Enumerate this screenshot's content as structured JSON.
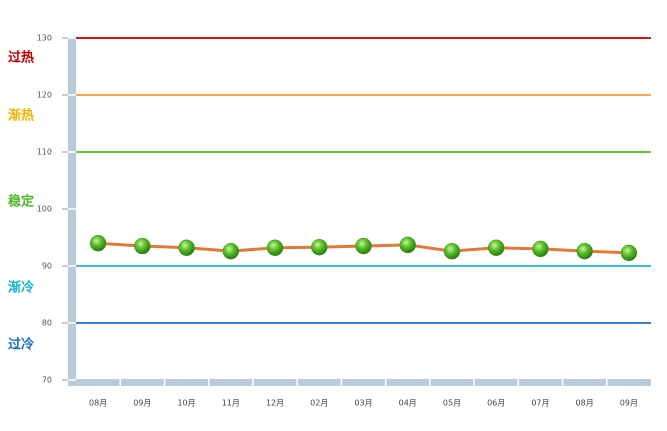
{
  "chart_data": {
    "type": "line",
    "categories": [
      "08月",
      "09月",
      "10月",
      "11月",
      "12月",
      "02月",
      "03月",
      "04月",
      "05月",
      "06月",
      "07月",
      "08月",
      "09月"
    ],
    "series": [
      {
        "color": "#e07a3a",
        "marker_color": "#3a9a1a",
        "values": [
          94.0,
          93.5,
          93.2,
          92.6,
          93.2,
          93.3,
          93.5,
          93.7,
          92.6,
          93.2,
          93.0,
          92.6,
          92.3
        ]
      }
    ],
    "ylim": [
      70,
      130
    ],
    "yticks": [
      70,
      80,
      90,
      100,
      110,
      120,
      130
    ],
    "thresholds": [
      {
        "label": "过热",
        "value": 130,
        "color": "#cc1a1a",
        "text_color": "#c00000"
      },
      {
        "label": "渐热",
        "value": 120,
        "color": "#f5a940",
        "text_color": "#f0b400"
      },
      {
        "label": "稳定",
        "value": 110,
        "color": "#6cc83a",
        "text_color": "#4db82a"
      },
      {
        "label": "渐冷",
        "value": 90,
        "color": "#3cc0d0",
        "text_color": "#1ab0d0"
      },
      {
        "label": "过冷",
        "value": 80,
        "color": "#3a7ecc",
        "text_color": "#1a6ec0"
      }
    ]
  }
}
